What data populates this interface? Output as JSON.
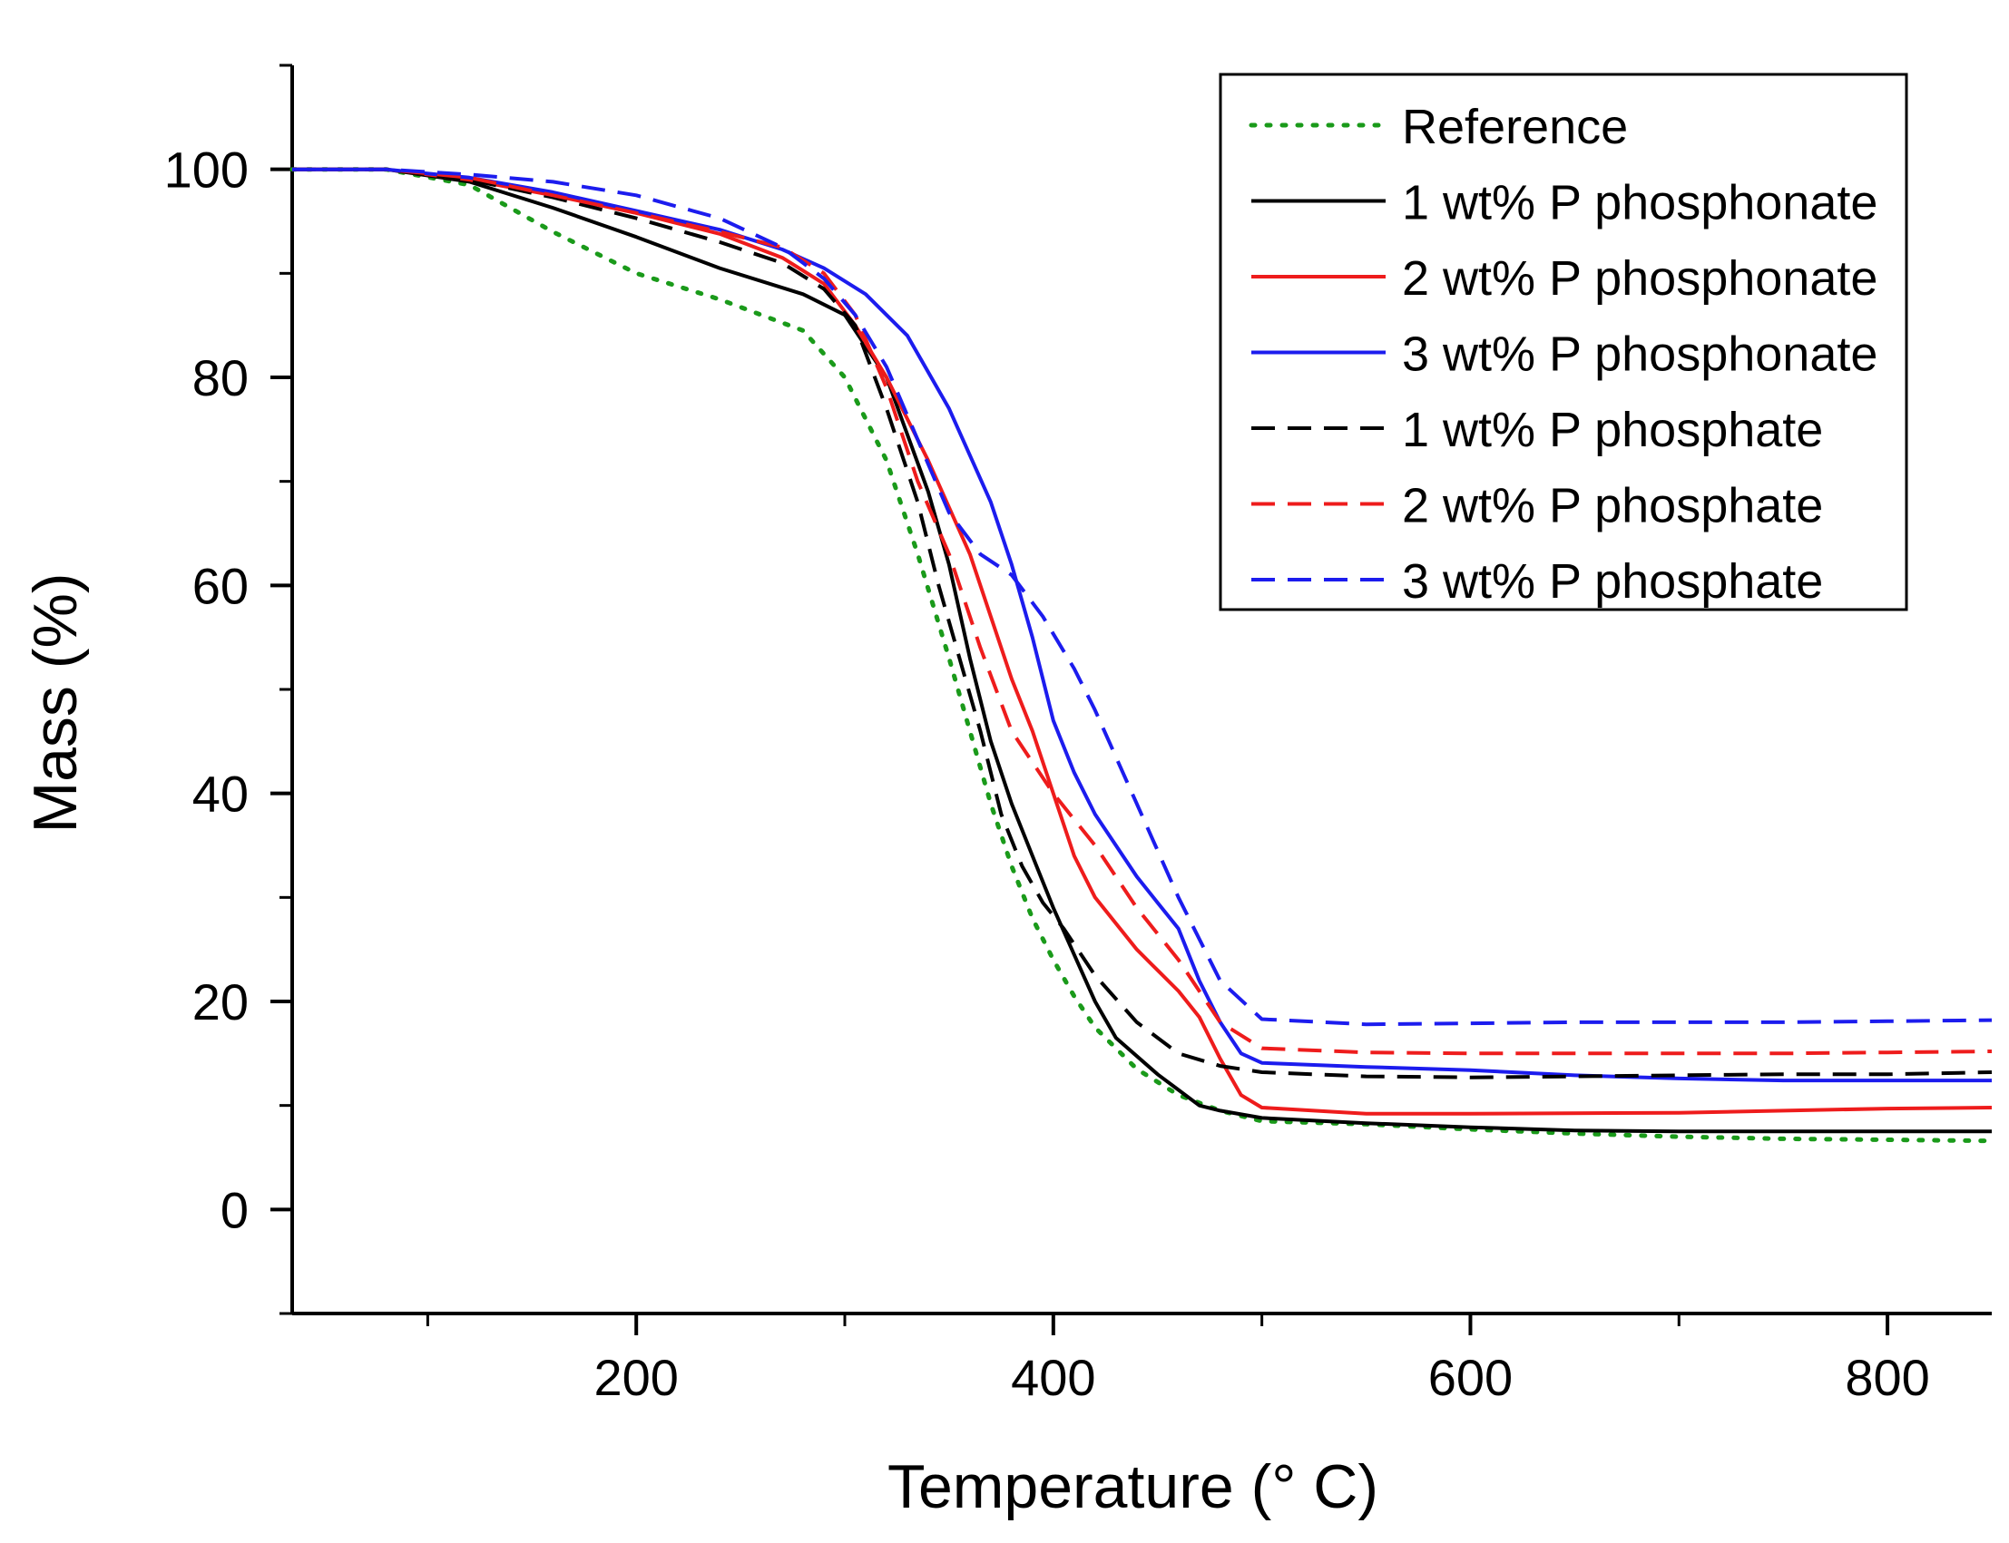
{
  "chart_data": {
    "type": "line",
    "title": "",
    "xlabel": "Temperature (° C)",
    "ylabel": "Mass (%)",
    "xlim": [
      35,
      850
    ],
    "ylim": [
      -10,
      110
    ],
    "x_ticks": [
      200,
      400,
      600,
      800
    ],
    "x_minor_ticks": [
      100,
      300,
      500,
      700
    ],
    "y_ticks": [
      0,
      20,
      40,
      60,
      80,
      100
    ],
    "y_minor_ticks": [
      -10,
      10,
      30,
      50,
      70,
      90,
      110
    ],
    "grid": false,
    "legend_position": "top-right",
    "series": [
      {
        "name": "Reference",
        "color": "#1a9a1a",
        "style": "dotted",
        "points": [
          [
            35,
            100
          ],
          [
            80,
            100
          ],
          [
            120,
            98.5
          ],
          [
            160,
            94
          ],
          [
            200,
            90
          ],
          [
            240,
            87.5
          ],
          [
            280,
            84.5
          ],
          [
            300,
            80
          ],
          [
            320,
            72
          ],
          [
            335,
            63
          ],
          [
            350,
            53
          ],
          [
            360,
            46
          ],
          [
            370,
            39
          ],
          [
            380,
            33
          ],
          [
            390,
            28
          ],
          [
            400,
            24
          ],
          [
            410,
            20.5
          ],
          [
            420,
            17.5
          ],
          [
            440,
            13.5
          ],
          [
            460,
            11
          ],
          [
            480,
            9.5
          ],
          [
            500,
            8.5
          ],
          [
            550,
            8.2
          ],
          [
            600,
            7.7
          ],
          [
            650,
            7.3
          ],
          [
            700,
            7
          ],
          [
            750,
            6.8
          ],
          [
            800,
            6.7
          ],
          [
            850,
            6.6
          ]
        ]
      },
      {
        "name": "1 wt% P phosphonate",
        "color": "#000000",
        "style": "solid",
        "points": [
          [
            35,
            100
          ],
          [
            80,
            100
          ],
          [
            120,
            98.8
          ],
          [
            160,
            96.3
          ],
          [
            200,
            93.5
          ],
          [
            240,
            90.5
          ],
          [
            280,
            88
          ],
          [
            300,
            86
          ],
          [
            320,
            80
          ],
          [
            340,
            69
          ],
          [
            350,
            62
          ],
          [
            360,
            53
          ],
          [
            370,
            45
          ],
          [
            380,
            39
          ],
          [
            390,
            34
          ],
          [
            400,
            29
          ],
          [
            410,
            24.5
          ],
          [
            420,
            20
          ],
          [
            430,
            16.5
          ],
          [
            450,
            13
          ],
          [
            460,
            11.5
          ],
          [
            470,
            10
          ],
          [
            480,
            9.5
          ],
          [
            500,
            8.8
          ],
          [
            550,
            8.3
          ],
          [
            600,
            7.9
          ],
          [
            650,
            7.6
          ],
          [
            700,
            7.5
          ],
          [
            750,
            7.5
          ],
          [
            800,
            7.5
          ],
          [
            850,
            7.5
          ]
        ]
      },
      {
        "name": "2 wt% P phosphonate",
        "color": "#ee1c1c",
        "style": "solid",
        "points": [
          [
            35,
            100
          ],
          [
            80,
            100
          ],
          [
            120,
            99
          ],
          [
            160,
            97.5
          ],
          [
            200,
            95.8
          ],
          [
            240,
            93.8
          ],
          [
            270,
            91.5
          ],
          [
            290,
            89
          ],
          [
            305,
            85
          ],
          [
            320,
            80
          ],
          [
            340,
            72
          ],
          [
            360,
            63
          ],
          [
            370,
            57
          ],
          [
            380,
            51
          ],
          [
            390,
            46
          ],
          [
            400,
            40
          ],
          [
            410,
            34
          ],
          [
            420,
            30
          ],
          [
            430,
            27.5
          ],
          [
            440,
            25
          ],
          [
            450,
            23
          ],
          [
            460,
            21
          ],
          [
            470,
            18.5
          ],
          [
            480,
            14.5
          ],
          [
            490,
            11
          ],
          [
            500,
            9.8
          ],
          [
            550,
            9.2
          ],
          [
            600,
            9.2
          ],
          [
            700,
            9.3
          ],
          [
            800,
            9.7
          ],
          [
            850,
            9.8
          ]
        ]
      },
      {
        "name": "3 wt% P phosphonate",
        "color": "#1c1cee",
        "style": "solid",
        "points": [
          [
            35,
            100
          ],
          [
            80,
            100
          ],
          [
            120,
            99.2
          ],
          [
            160,
            97.8
          ],
          [
            200,
            96
          ],
          [
            240,
            94.2
          ],
          [
            270,
            92.3
          ],
          [
            290,
            90.5
          ],
          [
            310,
            88
          ],
          [
            330,
            84
          ],
          [
            350,
            77
          ],
          [
            370,
            68
          ],
          [
            380,
            62
          ],
          [
            390,
            55
          ],
          [
            400,
            47
          ],
          [
            410,
            42
          ],
          [
            420,
            38
          ],
          [
            430,
            35
          ],
          [
            440,
            32
          ],
          [
            450,
            29.5
          ],
          [
            460,
            27
          ],
          [
            470,
            22
          ],
          [
            480,
            18
          ],
          [
            490,
            15
          ],
          [
            500,
            14.1
          ],
          [
            550,
            13.7
          ],
          [
            600,
            13.4
          ],
          [
            650,
            12.9
          ],
          [
            700,
            12.6
          ],
          [
            750,
            12.4
          ],
          [
            800,
            12.4
          ],
          [
            850,
            12.4
          ]
        ]
      },
      {
        "name": "1 wt% P phosphate",
        "color": "#000000",
        "style": "dashed",
        "points": [
          [
            35,
            100
          ],
          [
            80,
            100
          ],
          [
            120,
            99
          ],
          [
            160,
            97.3
          ],
          [
            200,
            95.3
          ],
          [
            240,
            93
          ],
          [
            270,
            91
          ],
          [
            290,
            88.5
          ],
          [
            305,
            85
          ],
          [
            320,
            77
          ],
          [
            335,
            68
          ],
          [
            345,
            60
          ],
          [
            355,
            53
          ],
          [
            365,
            46
          ],
          [
            375,
            38
          ],
          [
            385,
            33
          ],
          [
            395,
            29.5
          ],
          [
            405,
            27
          ],
          [
            420,
            22.5
          ],
          [
            440,
            18
          ],
          [
            460,
            15
          ],
          [
            480,
            13.8
          ],
          [
            500,
            13.2
          ],
          [
            550,
            12.8
          ],
          [
            600,
            12.7
          ],
          [
            650,
            12.8
          ],
          [
            700,
            12.9
          ],
          [
            750,
            13
          ],
          [
            800,
            13
          ],
          [
            850,
            13.2
          ]
        ]
      },
      {
        "name": "2 wt% P phosphate",
        "color": "#ee1c1c",
        "style": "dashed",
        "points": [
          [
            35,
            100
          ],
          [
            80,
            100
          ],
          [
            120,
            99.2
          ],
          [
            160,
            97.5
          ],
          [
            200,
            95.8
          ],
          [
            240,
            94
          ],
          [
            270,
            92.5
          ],
          [
            290,
            90
          ],
          [
            305,
            86
          ],
          [
            320,
            79
          ],
          [
            335,
            70
          ],
          [
            350,
            63
          ],
          [
            365,
            54
          ],
          [
            380,
            46
          ],
          [
            390,
            43
          ],
          [
            400,
            40
          ],
          [
            420,
            35
          ],
          [
            440,
            29
          ],
          [
            460,
            24
          ],
          [
            480,
            18
          ],
          [
            500,
            15.5
          ],
          [
            550,
            15.1
          ],
          [
            600,
            15
          ],
          [
            650,
            15
          ],
          [
            700,
            15
          ],
          [
            750,
            15
          ],
          [
            800,
            15.1
          ],
          [
            850,
            15.2
          ]
        ]
      },
      {
        "name": "3 wt% P phosphate",
        "color": "#1c1cee",
        "style": "dashed",
        "points": [
          [
            35,
            100
          ],
          [
            80,
            100
          ],
          [
            120,
            99.5
          ],
          [
            160,
            98.8
          ],
          [
            200,
            97.5
          ],
          [
            240,
            95.3
          ],
          [
            270,
            92.5
          ],
          [
            290,
            89.5
          ],
          [
            305,
            86
          ],
          [
            320,
            81
          ],
          [
            335,
            74
          ],
          [
            350,
            67
          ],
          [
            365,
            63
          ],
          [
            380,
            61
          ],
          [
            395,
            57
          ],
          [
            410,
            52
          ],
          [
            420,
            48
          ],
          [
            440,
            39
          ],
          [
            460,
            30
          ],
          [
            480,
            22
          ],
          [
            500,
            18.3
          ],
          [
            550,
            17.8
          ],
          [
            600,
            17.9
          ],
          [
            650,
            18
          ],
          [
            700,
            18
          ],
          [
            750,
            18
          ],
          [
            800,
            18.1
          ],
          [
            850,
            18.2
          ]
        ]
      }
    ]
  }
}
